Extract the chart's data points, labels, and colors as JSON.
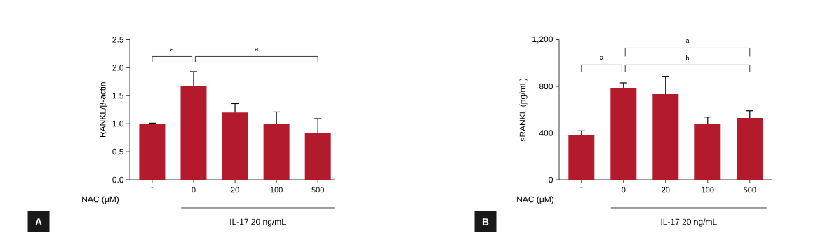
{
  "chart_data": [
    {
      "type": "bar",
      "xlabel": "NAC (μM)",
      "ylabel": "RANKL/β-actin",
      "categories": [
        "-",
        "0",
        "20",
        "100",
        "500"
      ],
      "values": [
        1.0,
        1.67,
        1.2,
        1.0,
        0.83
      ],
      "errors": [
        0.01,
        0.26,
        0.16,
        0.21,
        0.26
      ],
      "color": "#b31b2c",
      "ylim": [
        0,
        2.5
      ],
      "yticks": [
        {
          "value": 0,
          "label": "0.0"
        },
        0.5,
        {
          "value": 1,
          "label": "1.0"
        },
        1.5,
        {
          "value": 2,
          "label": "2.0"
        },
        2.5
      ],
      "annotations": [
        "a",
        "a",
        "IL-17  20 ng/mL",
        "A"
      ]
    },
    {
      "type": "bar",
      "xlabel": "NAC (μM)",
      "ylabel": "sRANKL (pg/mL)",
      "categories": [
        "-",
        "0",
        "20",
        "100",
        "500"
      ],
      "values": [
        383,
        782,
        734,
        475,
        529
      ],
      "errors": [
        36,
        48,
        152,
        62,
        62
      ],
      "color": "#b31b2c",
      "ylim": [
        0,
        1200
      ],
      "yticks": [
        0,
        400,
        800,
        {
          "value": 1200,
          "label": "1,200"
        }
      ],
      "annotations": [
        "a",
        "b",
        "a",
        "IL-17  20 ng/mL",
        "B"
      ]
    }
  ]
}
